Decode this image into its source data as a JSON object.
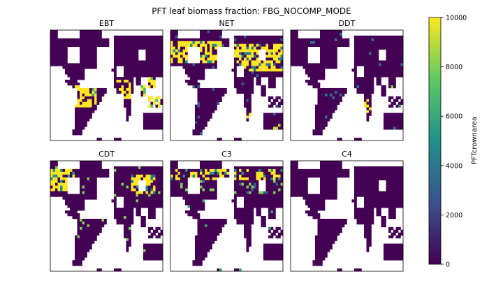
{
  "figure": {
    "suptitle": "PFT leaf biomass fraction: FBG_NOCOMP_MODE"
  },
  "colors": {
    "land_low": "#440154",
    "viridis": [
      "#440154",
      "#3b528b",
      "#21918c",
      "#5ec962",
      "#fde725"
    ]
  },
  "colorbar": {
    "label": "PFTcrownarea",
    "ticks": [
      "0",
      "2000",
      "4000",
      "6000",
      "8000",
      "10000"
    ],
    "range": [
      0,
      10000
    ]
  },
  "chart_data": [
    {
      "type": "heatmap",
      "title": "EBT",
      "grid": "off",
      "colormap": "viridis",
      "zlim": [
        0,
        10000
      ],
      "high_regions": [
        {
          "region": "northern South America / Central America",
          "approx_value": 10000
        },
        {
          "region": "central Africa",
          "approx_value": 10000
        },
        {
          "region": "South and Southeast Asia / Indonesia",
          "approx_value": 10000
        }
      ],
      "background_value": 0
    },
    {
      "type": "heatmap",
      "title": "NET",
      "grid": "off",
      "colormap": "viridis",
      "zlim": [
        0,
        10000
      ],
      "high_regions": [
        {
          "region": "boreal North America",
          "approx_value": 10000
        },
        {
          "region": "boreal Eurasia",
          "approx_value": 10000
        },
        {
          "region": "western North America",
          "approx_value": 10000
        },
        {
          "region": "southern Africa (scattered)",
          "approx_value": 10000
        }
      ],
      "background_value": 0
    },
    {
      "type": "heatmap",
      "title": "DDT",
      "grid": "off",
      "colormap": "viridis",
      "zlim": [
        0,
        10000
      ],
      "high_regions": [
        {
          "region": "southern Africa / Madagascar (sparse)",
          "approx_value": 10000
        },
        {
          "region": "India (sparse)",
          "approx_value": 8000
        }
      ],
      "background_value": 0
    },
    {
      "type": "heatmap",
      "title": "CDT",
      "grid": "off",
      "colormap": "viridis",
      "zlim": [
        0,
        10000
      ],
      "high_regions": [
        {
          "region": "Alaska / NW Canada",
          "approx_value": 10000
        },
        {
          "region": "eastern Siberia",
          "approx_value": 10000
        }
      ],
      "background_value": 0
    },
    {
      "type": "heatmap",
      "title": "C3",
      "grid": "off",
      "colormap": "viridis",
      "zlim": [
        0,
        10000
      ],
      "high_regions": [
        {
          "region": "high-latitude tundra band",
          "approx_value": 10000
        },
        {
          "region": "scattered mid-latitude cells",
          "approx_value": 6000
        }
      ],
      "background_value": 0
    },
    {
      "type": "heatmap",
      "title": "C4",
      "grid": "off",
      "colormap": "viridis",
      "zlim": [
        0,
        10000
      ],
      "high_regions": [],
      "background_value": 0
    }
  ]
}
